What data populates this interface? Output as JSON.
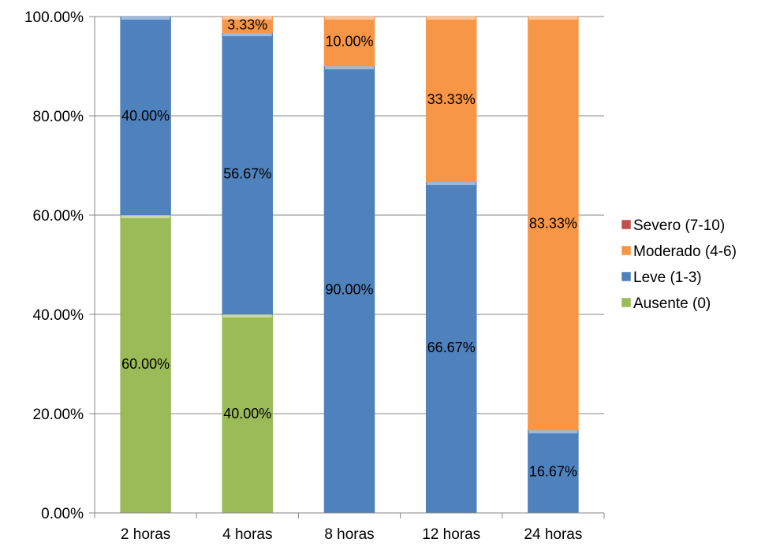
{
  "chart_data": {
    "type": "bar",
    "stacked": true,
    "categories": [
      "2 horas",
      "4 horas",
      "8 horas",
      "12 horas",
      "24 horas"
    ],
    "series": [
      {
        "name": "Ausente (0)",
        "color": "#9BBB59",
        "values": [
          60.0,
          40.0,
          0,
          0,
          0
        ],
        "labels": [
          "60.00%",
          "40.00%",
          "",
          "",
          ""
        ]
      },
      {
        "name": "Leve (1-3)",
        "color": "#4F81BD",
        "values": [
          40.0,
          56.67,
          90.0,
          66.67,
          16.67
        ],
        "labels": [
          "40.00%",
          "56.67%",
          "90.00%",
          "66.67%",
          "16.67%"
        ]
      },
      {
        "name": "Moderado (4-6)",
        "color": "#F79646",
        "values": [
          0,
          3.33,
          10.0,
          33.33,
          83.33
        ],
        "labels": [
          "",
          "3.33%",
          "10.00%",
          "33.33%",
          "83.33%"
        ]
      },
      {
        "name": "Severo (7-10)",
        "color": "#C0504D",
        "values": [
          0,
          0,
          0,
          0,
          0
        ],
        "labels": [
          "",
          "",
          "",
          "",
          ""
        ]
      }
    ],
    "legend_order": [
      "Severo (7-10)",
      "Moderado (4-6)",
      "Leve (1-3)",
      "Ausente (0)"
    ],
    "yticks": [
      "0.00%",
      "20.00%",
      "40.00%",
      "60.00%",
      "80.00%",
      "100.00%"
    ],
    "ylim": [
      0,
      100
    ],
    "grid": true,
    "legend_position": "right",
    "title": "",
    "xlabel": "",
    "ylabel": ""
  }
}
